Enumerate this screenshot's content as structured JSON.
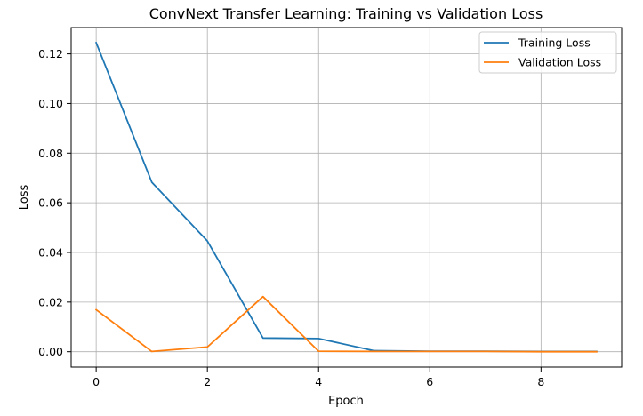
{
  "chart_data": {
    "type": "line",
    "title": "ConvNext Transfer Learning: Training vs Validation Loss",
    "xlabel": "Epoch",
    "ylabel": "Loss",
    "x": [
      0,
      1,
      2,
      3,
      4,
      5,
      6,
      7,
      8,
      9
    ],
    "xlim": [
      -0.45,
      9.45
    ],
    "ylim": [
      -0.0062,
      0.1306
    ],
    "xticks": [
      0,
      2,
      4,
      6,
      8
    ],
    "xtick_labels": [
      "0",
      "2",
      "4",
      "6",
      "8"
    ],
    "yticks": [
      0.0,
      0.02,
      0.04,
      0.06,
      0.08,
      0.1,
      0.12
    ],
    "ytick_labels": [
      "0.00",
      "0.02",
      "0.04",
      "0.06",
      "0.08",
      "0.10",
      "0.12"
    ],
    "grid": true,
    "legend_position": "top-right",
    "series": [
      {
        "name": "Training Loss",
        "color": "#1f77b4",
        "values": [
          0.1245,
          0.0683,
          0.0446,
          0.0055,
          0.0053,
          0.0004,
          0.0002,
          0.0002,
          0.0001,
          0.0001
        ]
      },
      {
        "name": "Validation Loss",
        "color": "#ff7f0e",
        "values": [
          0.0169,
          0.0001,
          0.0019,
          0.0222,
          0.0002,
          0.0001,
          0.0001,
          0.0001,
          0.0,
          0.0
        ]
      }
    ]
  }
}
